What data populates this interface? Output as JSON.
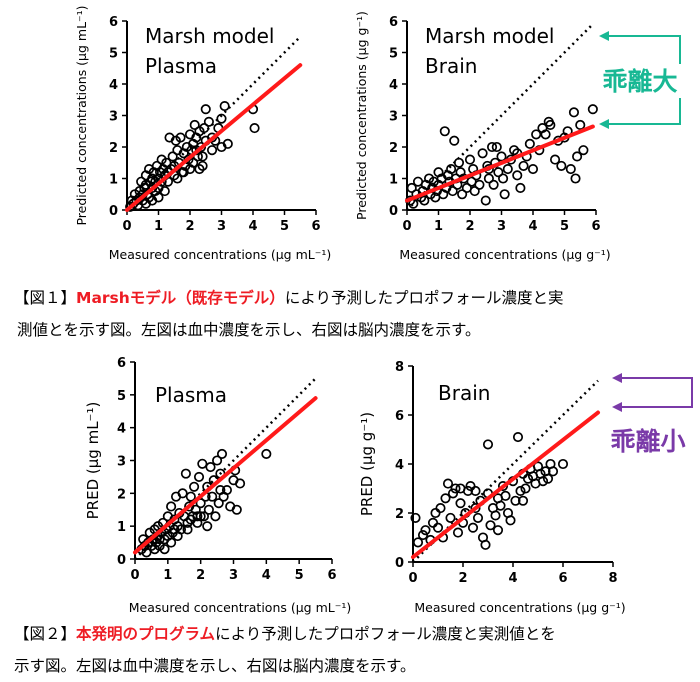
{
  "colors": {
    "fit_line": "#ff1a1a",
    "highlight_text": "#ee1c24",
    "arrow_large": "#18b894",
    "arrow_small": "#7a3aa8",
    "points": "#000000"
  },
  "annotations": {
    "large": "乖離大",
    "small": "乖離小"
  },
  "captions": {
    "fig1": {
      "prefix": "【図１】",
      "highlight": "Marshモデル（既存モデル）",
      "rest1": "により予測したプロポフォール濃度と実",
      "rest2": "測値とを示す図。左図は血中濃度を示し、右図は脳内濃度を示す。"
    },
    "fig2": {
      "prefix": "【図２】",
      "highlight": "本発明のプログラム",
      "rest1": "により予測したプロポフォール濃度と実測値とを",
      "rest2": "示す図。左図は血中濃度を示し、右図は脳内濃度を示す。"
    }
  },
  "chart_data": [
    {
      "type": "scatter",
      "title": "Marsh model Plasma",
      "title_lines": [
        "Marsh model",
        "Plasma"
      ],
      "xlabel": "Measured concentrations (µg mL⁻¹)",
      "ylabel": "Predicted concentrations (µg mL⁻¹)",
      "xlim": [
        0,
        6
      ],
      "ylim": [
        0,
        6
      ],
      "xticks": [
        "0",
        "1",
        "2",
        "3",
        "4",
        "5",
        "6"
      ],
      "yticks": [
        "0",
        "1",
        "2",
        "3",
        "4",
        "5",
        "6"
      ],
      "identity_line": [
        [
          0,
          0
        ],
        [
          5.5,
          5.5
        ]
      ],
      "fit_line": [
        [
          0,
          0
        ],
        [
          5.5,
          4.6
        ]
      ],
      "points": [
        [
          0.1,
          0.1
        ],
        [
          0.15,
          0.3
        ],
        [
          0.2,
          0.2
        ],
        [
          0.25,
          0.5
        ],
        [
          0.3,
          0.3
        ],
        [
          0.35,
          0.15
        ],
        [
          0.4,
          0.6
        ],
        [
          0.4,
          0.4
        ],
        [
          0.45,
          0.9
        ],
        [
          0.5,
          0.5
        ],
        [
          0.5,
          0.3
        ],
        [
          0.55,
          0.7
        ],
        [
          0.6,
          1.1
        ],
        [
          0.6,
          0.8
        ],
        [
          0.65,
          0.5
        ],
        [
          0.7,
          0.4
        ],
        [
          0.7,
          1.3
        ],
        [
          0.75,
          0.9
        ],
        [
          0.8,
          0.7
        ],
        [
          0.8,
          1.0
        ],
        [
          0.85,
          1.2
        ],
        [
          0.9,
          0.6
        ],
        [
          0.9,
          0.9
        ],
        [
          0.95,
          1.4
        ],
        [
          1.0,
          1.0
        ],
        [
          1.0,
          0.7
        ],
        [
          1.05,
          1.2
        ],
        [
          1.1,
          0.9
        ],
        [
          1.1,
          1.6
        ],
        [
          1.15,
          1.3
        ],
        [
          1.2,
          1.1
        ],
        [
          1.25,
          1.5
        ],
        [
          1.3,
          1.2
        ],
        [
          1.3,
          0.9
        ],
        [
          1.35,
          2.3
        ],
        [
          1.4,
          1.3
        ],
        [
          1.45,
          1.7
        ],
        [
          1.5,
          1.1
        ],
        [
          1.5,
          1.4
        ],
        [
          1.55,
          2.2
        ],
        [
          1.6,
          1.9
        ],
        [
          1.65,
          1.5
        ],
        [
          1.7,
          2.3
        ],
        [
          1.75,
          1.2
        ],
        [
          1.8,
          1.8
        ],
        [
          1.85,
          1.4
        ],
        [
          1.9,
          2.0
        ],
        [
          1.95,
          1.6
        ],
        [
          2.0,
          2.4
        ],
        [
          2.0,
          1.3
        ],
        [
          2.05,
          1.9
        ],
        [
          2.1,
          2.1
        ],
        [
          2.1,
          1.5
        ],
        [
          2.15,
          2.7
        ],
        [
          2.2,
          2.3
        ],
        [
          2.25,
          1.7
        ],
        [
          2.3,
          2.5
        ],
        [
          2.35,
          2.0
        ],
        [
          2.4,
          1.4
        ],
        [
          2.45,
          2.6
        ],
        [
          2.5,
          3.2
        ],
        [
          2.5,
          2.2
        ],
        [
          2.6,
          2.8
        ],
        [
          2.7,
          1.9
        ],
        [
          2.8,
          2.2
        ],
        [
          2.9,
          2.6
        ],
        [
          3.0,
          2.9
        ],
        [
          3.0,
          2.0
        ],
        [
          3.1,
          3.3
        ],
        [
          3.2,
          2.1
        ],
        [
          2.4,
          1.7
        ],
        [
          2.3,
          1.3
        ],
        [
          4.0,
          3.2
        ],
        [
          4.05,
          2.6
        ],
        [
          1.0,
          0.4
        ],
        [
          1.2,
          0.6
        ],
        [
          0.6,
          0.2
        ],
        [
          0.8,
          0.3
        ],
        [
          1.6,
          1.0
        ],
        [
          1.8,
          1.2
        ],
        [
          2.7,
          2.3
        ],
        [
          2.2,
          1.9
        ]
      ]
    },
    {
      "type": "scatter",
      "title": "Marsh model Brain",
      "title_lines": [
        "Marsh model",
        "Brain"
      ],
      "xlabel": "Measured concentrations (µg g⁻¹)",
      "ylabel": "Predicted concentrations (µg g⁻¹)",
      "xlim": [
        0,
        6
      ],
      "ylim": [
        0,
        6
      ],
      "xticks": [
        "0",
        "1",
        "2",
        "3",
        "4",
        "5",
        "6"
      ],
      "yticks": [
        "0",
        "1",
        "2",
        "3",
        "4",
        "5",
        "6"
      ],
      "identity_line": [
        [
          0,
          0
        ],
        [
          5.9,
          5.9
        ]
      ],
      "fit_line": [
        [
          0,
          0.3
        ],
        [
          5.9,
          2.65
        ]
      ],
      "points": [
        [
          0.1,
          0.3
        ],
        [
          0.15,
          0.7
        ],
        [
          0.2,
          0.2
        ],
        [
          0.3,
          0.5
        ],
        [
          0.35,
          0.9
        ],
        [
          0.45,
          0.4
        ],
        [
          0.5,
          0.6
        ],
        [
          0.55,
          0.3
        ],
        [
          0.6,
          0.8
        ],
        [
          0.7,
          1.0
        ],
        [
          0.75,
          0.5
        ],
        [
          0.8,
          0.7
        ],
        [
          0.85,
          0.9
        ],
        [
          0.9,
          0.4
        ],
        [
          0.95,
          0.6
        ],
        [
          1.0,
          0.8
        ],
        [
          1.0,
          1.2
        ],
        [
          1.1,
          1.0
        ],
        [
          1.15,
          0.5
        ],
        [
          1.2,
          2.5
        ],
        [
          1.25,
          0.7
        ],
        [
          1.3,
          1.1
        ],
        [
          1.35,
          0.9
        ],
        [
          1.4,
          1.3
        ],
        [
          1.45,
          0.6
        ],
        [
          1.5,
          2.2
        ],
        [
          1.55,
          1.0
        ],
        [
          1.6,
          0.8
        ],
        [
          1.65,
          1.5
        ],
        [
          1.7,
          1.2
        ],
        [
          1.75,
          0.5
        ],
        [
          1.8,
          1.0
        ],
        [
          1.9,
          0.7
        ],
        [
          2.0,
          1.6
        ],
        [
          2.05,
          0.9
        ],
        [
          2.1,
          1.3
        ],
        [
          2.15,
          0.6
        ],
        [
          2.2,
          1.1
        ],
        [
          2.3,
          0.8
        ],
        [
          2.4,
          1.8
        ],
        [
          2.5,
          0.3
        ],
        [
          2.55,
          1.4
        ],
        [
          2.6,
          1.0
        ],
        [
          2.7,
          2.0
        ],
        [
          2.75,
          0.8
        ],
        [
          2.8,
          1.5
        ],
        [
          2.85,
          2.0
        ],
        [
          2.9,
          1.2
        ],
        [
          3.0,
          1.7
        ],
        [
          3.05,
          1.0
        ],
        [
          3.1,
          0.5
        ],
        [
          3.2,
          1.3
        ],
        [
          3.3,
          1.6
        ],
        [
          3.4,
          1.9
        ],
        [
          3.5,
          1.1
        ],
        [
          3.6,
          0.7
        ],
        [
          3.7,
          1.4
        ],
        [
          3.8,
          1.7
        ],
        [
          3.9,
          2.1
        ],
        [
          4.0,
          1.3
        ],
        [
          4.1,
          2.4
        ],
        [
          4.2,
          1.9
        ],
        [
          4.3,
          2.6
        ],
        [
          4.4,
          2.4
        ],
        [
          4.5,
          2.8
        ],
        [
          4.55,
          2.7
        ],
        [
          4.7,
          1.6
        ],
        [
          4.8,
          2.2
        ],
        [
          4.9,
          1.4
        ],
        [
          5.0,
          2.3
        ],
        [
          5.1,
          2.5
        ],
        [
          5.2,
          1.3
        ],
        [
          5.3,
          3.1
        ],
        [
          5.35,
          1.0
        ],
        [
          5.4,
          1.7
        ],
        [
          5.5,
          2.7
        ],
        [
          5.6,
          1.9
        ],
        [
          5.9,
          3.2
        ],
        [
          3.5,
          1.8
        ],
        [
          2.6,
          1.3
        ]
      ]
    },
    {
      "type": "scatter",
      "title": "Plasma",
      "title_lines": [
        "Plasma"
      ],
      "xlabel": "Measured concentrations (µg mL⁻¹)",
      "ylabel": "PRED (µg mL⁻¹)",
      "xlim": [
        0,
        6
      ],
      "ylim": [
        0,
        6
      ],
      "xticks": [
        "0",
        "1",
        "2",
        "3",
        "4",
        "5",
        "6"
      ],
      "yticks": [
        "0",
        "1",
        "2",
        "3",
        "4",
        "5",
        "6"
      ],
      "identity_line": [
        [
          0,
          0
        ],
        [
          5.5,
          5.5
        ]
      ],
      "fit_line": [
        [
          0,
          0.2
        ],
        [
          5.5,
          4.9
        ]
      ],
      "points": [
        [
          0.2,
          0.3
        ],
        [
          0.25,
          0.6
        ],
        [
          0.3,
          0.4
        ],
        [
          0.35,
          0.2
        ],
        [
          0.4,
          0.5
        ],
        [
          0.45,
          0.8
        ],
        [
          0.5,
          0.4
        ],
        [
          0.55,
          0.6
        ],
        [
          0.6,
          0.9
        ],
        [
          0.65,
          0.5
        ],
        [
          0.7,
          0.7
        ],
        [
          0.7,
          1.0
        ],
        [
          0.75,
          0.4
        ],
        [
          0.8,
          0.8
        ],
        [
          0.85,
          1.1
        ],
        [
          0.9,
          0.6
        ],
        [
          0.95,
          0.9
        ],
        [
          1.0,
          1.3
        ],
        [
          1.0,
          0.7
        ],
        [
          1.05,
          1.0
        ],
        [
          1.1,
          1.6
        ],
        [
          1.15,
          0.8
        ],
        [
          1.2,
          1.2
        ],
        [
          1.25,
          1.9
        ],
        [
          1.3,
          1.0
        ],
        [
          1.35,
          1.4
        ],
        [
          1.4,
          0.9
        ],
        [
          1.45,
          2.0
        ],
        [
          1.5,
          1.3
        ],
        [
          1.55,
          2.6
        ],
        [
          1.6,
          1.1
        ],
        [
          1.65,
          1.6
        ],
        [
          1.7,
          1.9
        ],
        [
          1.75,
          1.3
        ],
        [
          1.8,
          2.2
        ],
        [
          1.85,
          1.5
        ],
        [
          1.9,
          1.1
        ],
        [
          1.95,
          2.5
        ],
        [
          2.0,
          1.7
        ],
        [
          2.05,
          2.9
        ],
        [
          2.1,
          1.3
        ],
        [
          2.15,
          1.9
        ],
        [
          2.2,
          2.2
        ],
        [
          2.25,
          1.5
        ],
        [
          2.3,
          2.8
        ],
        [
          2.35,
          1.9
        ],
        [
          2.4,
          2.4
        ],
        [
          2.45,
          1.3
        ],
        [
          2.5,
          3.0
        ],
        [
          2.55,
          1.7
        ],
        [
          2.6,
          2.6
        ],
        [
          2.65,
          3.2
        ],
        [
          2.7,
          1.9
        ],
        [
          2.8,
          2.1
        ],
        [
          2.9,
          1.6
        ],
        [
          3.0,
          2.4
        ],
        [
          3.05,
          2.7
        ],
        [
          3.1,
          1.5
        ],
        [
          3.2,
          2.3
        ],
        [
          4.0,
          3.2
        ],
        [
          0.9,
          0.3
        ],
        [
          1.1,
          0.5
        ],
        [
          1.3,
          0.7
        ],
        [
          0.6,
          0.3
        ],
        [
          1.6,
          0.9
        ],
        [
          1.9,
          1.3
        ],
        [
          2.2,
          1.0
        ],
        [
          0.75,
          0.6
        ],
        [
          1.2,
          0.9
        ],
        [
          1.7,
          1.2
        ],
        [
          2.0,
          1.3
        ],
        [
          2.6,
          2.1
        ]
      ]
    },
    {
      "type": "scatter",
      "title": "Brain",
      "title_lines": [
        "Brain"
      ],
      "xlabel": "Measured concentrations (µg g⁻¹)",
      "ylabel": "PRED (µg g⁻¹)",
      "xlim": [
        0,
        8
      ],
      "ylim": [
        0,
        8
      ],
      "xticks": [
        "0",
        "2",
        "4",
        "6",
        "8"
      ],
      "yticks": [
        "0",
        "2",
        "4",
        "6",
        "8"
      ],
      "identity_line": [
        [
          0,
          0
        ],
        [
          7.4,
          7.4
        ]
      ],
      "fit_line": [
        [
          0,
          0.2
        ],
        [
          7.4,
          6.1
        ]
      ],
      "points": [
        [
          0.1,
          1.8
        ],
        [
          0.2,
          0.8
        ],
        [
          0.4,
          1.1
        ],
        [
          0.5,
          1.3
        ],
        [
          0.7,
          0.9
        ],
        [
          0.8,
          1.6
        ],
        [
          0.9,
          2.0
        ],
        [
          1.0,
          1.4
        ],
        [
          1.1,
          2.2
        ],
        [
          1.2,
          1.0
        ],
        [
          1.3,
          2.6
        ],
        [
          1.4,
          3.2
        ],
        [
          1.5,
          1.8
        ],
        [
          1.6,
          2.8
        ],
        [
          1.7,
          3.0
        ],
        [
          1.8,
          1.2
        ],
        [
          1.9,
          2.4
        ],
        [
          2.0,
          1.6
        ],
        [
          2.1,
          2.0
        ],
        [
          2.2,
          2.9
        ],
        [
          2.3,
          3.1
        ],
        [
          2.4,
          1.4
        ],
        [
          2.5,
          2.2
        ],
        [
          2.6,
          1.8
        ],
        [
          2.7,
          2.5
        ],
        [
          2.8,
          1.0
        ],
        [
          2.9,
          0.7
        ],
        [
          3.0,
          4.8
        ],
        [
          3.0,
          2.8
        ],
        [
          3.1,
          1.5
        ],
        [
          3.2,
          2.2
        ],
        [
          3.3,
          1.9
        ],
        [
          3.4,
          2.6
        ],
        [
          3.5,
          2.3
        ],
        [
          3.6,
          3.1
        ],
        [
          3.7,
          2.7
        ],
        [
          3.8,
          2.0
        ],
        [
          3.9,
          1.7
        ],
        [
          4.0,
          3.3
        ],
        [
          4.1,
          2.5
        ],
        [
          4.2,
          5.1
        ],
        [
          4.3,
          2.9
        ],
        [
          4.4,
          3.6
        ],
        [
          4.5,
          3.0
        ],
        [
          4.6,
          3.4
        ],
        [
          4.7,
          3.8
        ],
        [
          4.8,
          3.5
        ],
        [
          4.9,
          3.2
        ],
        [
          5.0,
          3.9
        ],
        [
          5.1,
          3.6
        ],
        [
          5.2,
          3.3
        ],
        [
          5.3,
          3.7
        ],
        [
          5.4,
          3.4
        ],
        [
          5.5,
          4.0
        ],
        [
          5.6,
          3.7
        ],
        [
          6.0,
          4.0
        ],
        [
          2.5,
          2.9
        ],
        [
          1.9,
          3.0
        ],
        [
          3.4,
          1.3
        ],
        [
          4.4,
          2.5
        ]
      ]
    }
  ]
}
